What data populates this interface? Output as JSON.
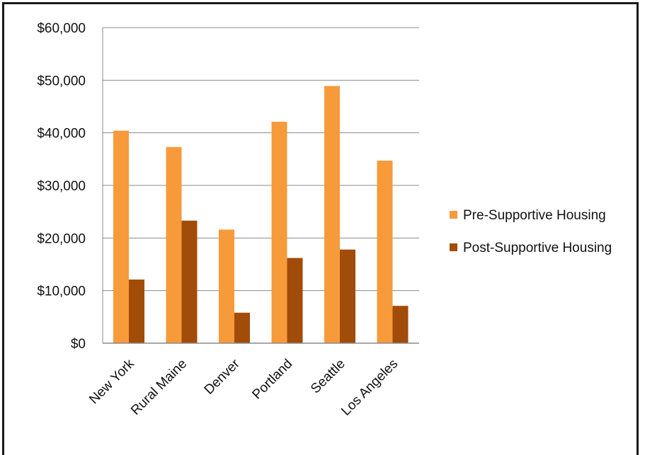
{
  "chart_data": {
    "type": "bar",
    "title": "",
    "xlabel": "",
    "ylabel": "",
    "categories": [
      "New York",
      "Rural Maine",
      "Denver",
      "Portland",
      "Seattle",
      "Los Angeles"
    ],
    "series": [
      {
        "name": "Pre-Supportive Housing",
        "color": "#f79a3a",
        "values": [
          40400,
          37300,
          21600,
          42100,
          48900,
          34700
        ]
      },
      {
        "name": "Post-Supportive Housing",
        "color": "#a14c08",
        "values": [
          12100,
          23300,
          5800,
          16200,
          17800,
          7100
        ]
      }
    ],
    "ylim": [
      0,
      60000
    ],
    "yticks": [
      0,
      10000,
      20000,
      30000,
      40000,
      50000,
      60000
    ],
    "ytick_labels": [
      "$0",
      "$10,000",
      "$20,000",
      "$30,000",
      "$40,000",
      "$50,000",
      "$60,000"
    ],
    "grid": true,
    "legend_position": "right"
  }
}
